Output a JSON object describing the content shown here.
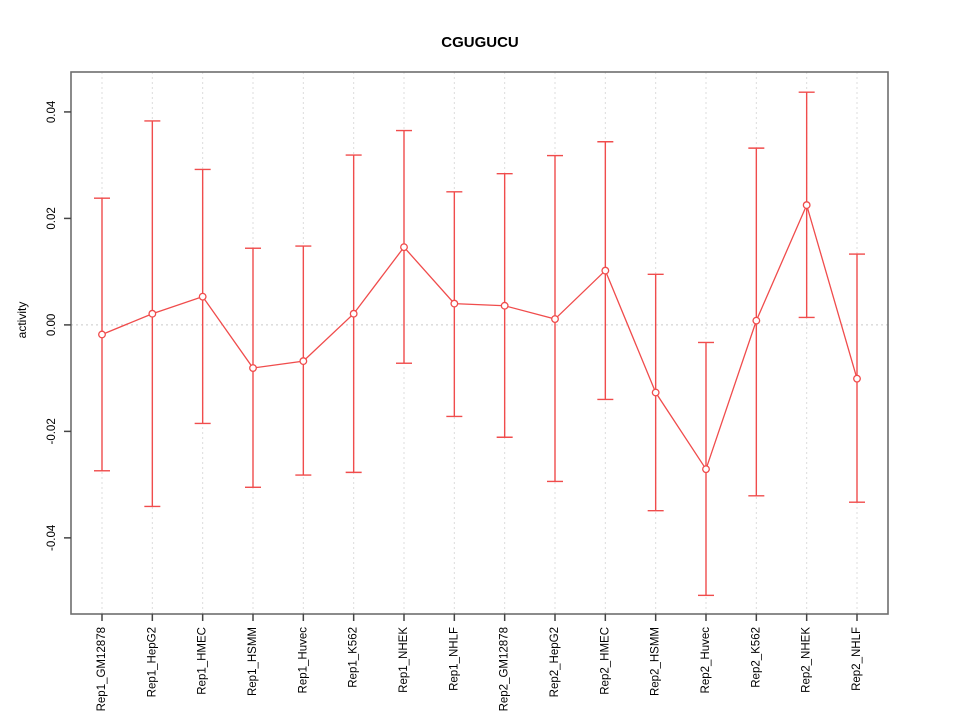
{
  "chart_data": {
    "type": "line",
    "title": "CGUGUCU",
    "xlabel": "",
    "ylabel": "activity",
    "ylim": [
      -0.0543,
      0.0475
    ],
    "grid": "dashed vertical gridline per category, dotted horizontal line at 0",
    "legend_position": "none",
    "error_bars": true,
    "yticks": [
      {
        "value": -0.04,
        "label": "-0.04"
      },
      {
        "value": -0.02,
        "label": "-0.02"
      },
      {
        "value": 0.0,
        "label": "0.00"
      },
      {
        "value": 0.02,
        "label": "0.02"
      },
      {
        "value": 0.04,
        "label": "0.04"
      }
    ],
    "categories": [
      "Rep1_GM12878",
      "Rep1_HepG2",
      "Rep1_HMEC",
      "Rep1_HSMM",
      "Rep1_Huvec",
      "Rep1_K562",
      "Rep1_NHEK",
      "Rep1_NHLF",
      "Rep2_GM12878",
      "Rep2_HepG2",
      "Rep2_HMEC",
      "Rep2_HSMM",
      "Rep2_Huvec",
      "Rep2_K562",
      "Rep2_NHEK",
      "Rep2_NHLF"
    ],
    "values": [
      -0.0018,
      0.0021,
      0.0053,
      -0.0081,
      -0.0068,
      0.0021,
      0.0146,
      0.004,
      0.0036,
      0.0011,
      0.0102,
      -0.0127,
      -0.0271,
      0.0008,
      0.0225,
      -0.0101
    ],
    "upper": [
      0.0238,
      0.0383,
      0.0292,
      0.0144,
      0.0148,
      0.0319,
      0.0365,
      0.025,
      0.0284,
      0.0318,
      0.0344,
      0.0095,
      -0.0033,
      0.0332,
      0.0437,
      0.0133
    ],
    "lower": [
      -0.0274,
      -0.0341,
      -0.0185,
      -0.0305,
      -0.0282,
      -0.0277,
      -0.0072,
      -0.0172,
      -0.0211,
      -0.0294,
      -0.014,
      -0.0349,
      -0.0508,
      -0.0321,
      0.0014,
      -0.0333
    ]
  },
  "colors": {
    "series_red": "#f04c4c",
    "gridline": "#dcdcdc",
    "zero_line": "#c9c9c9",
    "frame": "#6e6e6e",
    "tick_mark": "#454545",
    "text": "#000000",
    "background": "#ffffff"
  }
}
